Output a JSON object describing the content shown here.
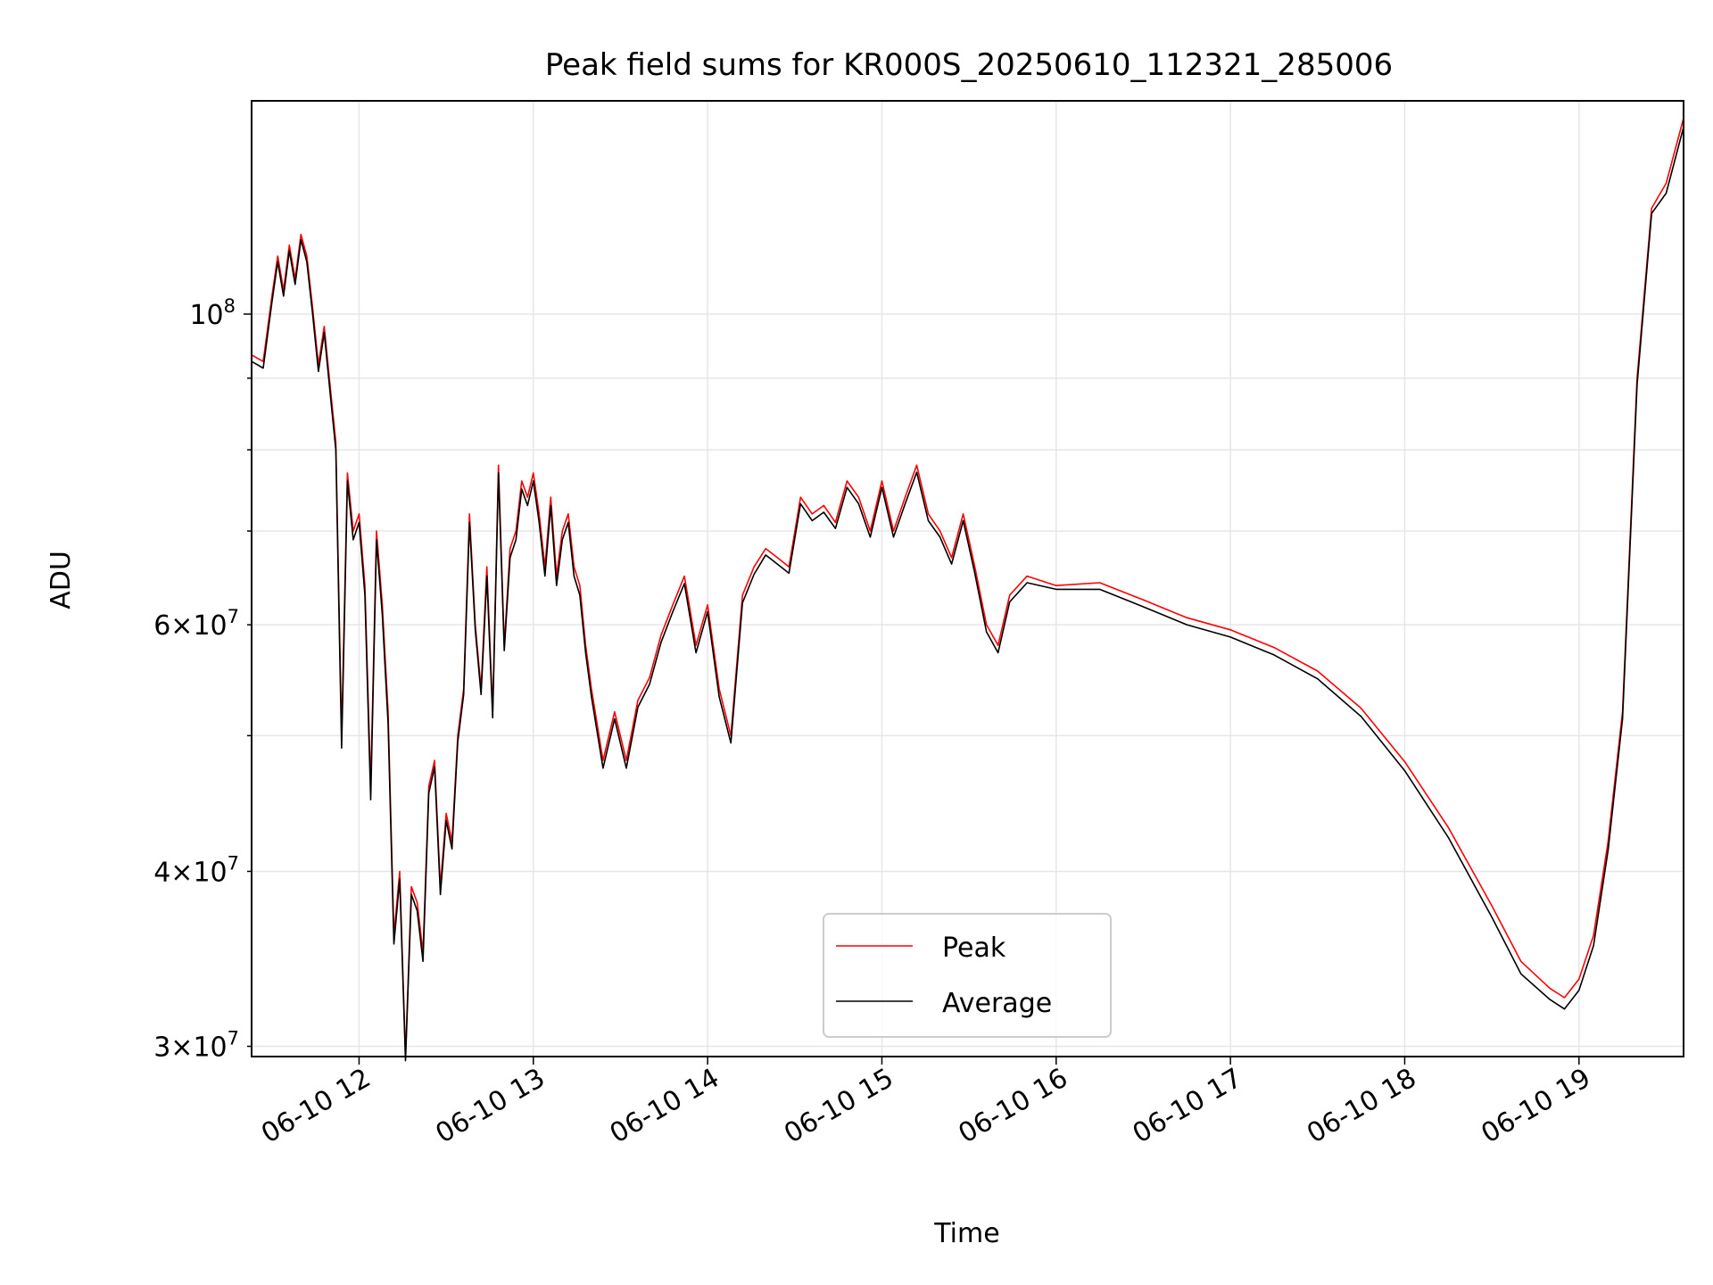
{
  "chart_data": {
    "type": "line",
    "title": "Peak field sums for KR000S_20250610_112321_285006",
    "xlabel": "Time",
    "ylabel": "ADU",
    "yscale": "log",
    "x_axis_type": "datetime",
    "xlim": [
      "2025-06-10 11:23",
      "2025-06-10 19:36"
    ],
    "ylim": [
      29500000,
      142000000
    ],
    "x_ticks": [
      "06-10 12",
      "06-10 13",
      "06-10 14",
      "06-10 15",
      "06-10 16",
      "06-10 17",
      "06-10 18",
      "06-10 19"
    ],
    "y_major_ticks": [
      {
        "value": 100000000,
        "base": "10",
        "exp": "8"
      }
    ],
    "y_minor_ticks": [
      {
        "value": 30000000,
        "mant": "3",
        "exp": "7"
      },
      {
        "value": 40000000,
        "mant": "4",
        "exp": "7"
      },
      {
        "value": 50000000,
        "mant": "",
        "exp": ""
      },
      {
        "value": 60000000,
        "mant": "6",
        "exp": "7"
      },
      {
        "value": 70000000,
        "mant": "",
        "exp": ""
      },
      {
        "value": 80000000,
        "mant": "",
        "exp": ""
      },
      {
        "value": 90000000,
        "mant": "",
        "exp": ""
      }
    ],
    "grid": true,
    "legend_position": "lower center",
    "x": [
      "2025-06-10 11:23",
      "2025-06-10 11:27",
      "2025-06-10 11:30",
      "2025-06-10 11:32",
      "2025-06-10 11:34",
      "2025-06-10 11:36",
      "2025-06-10 11:38",
      "2025-06-10 11:40",
      "2025-06-10 11:42",
      "2025-06-10 11:44",
      "2025-06-10 11:46",
      "2025-06-10 11:48",
      "2025-06-10 11:50",
      "2025-06-10 11:52",
      "2025-06-10 11:54",
      "2025-06-10 11:56",
      "2025-06-10 11:58",
      "2025-06-10 12:00",
      "2025-06-10 12:02",
      "2025-06-10 12:04",
      "2025-06-10 12:06",
      "2025-06-10 12:08",
      "2025-06-10 12:10",
      "2025-06-10 12:12",
      "2025-06-10 12:14",
      "2025-06-10 12:16",
      "2025-06-10 12:18",
      "2025-06-10 12:20",
      "2025-06-10 12:22",
      "2025-06-10 12:24",
      "2025-06-10 12:26",
      "2025-06-10 12:28",
      "2025-06-10 12:30",
      "2025-06-10 12:32",
      "2025-06-10 12:34",
      "2025-06-10 12:36",
      "2025-06-10 12:38",
      "2025-06-10 12:40",
      "2025-06-10 12:42",
      "2025-06-10 12:44",
      "2025-06-10 12:46",
      "2025-06-10 12:48",
      "2025-06-10 12:50",
      "2025-06-10 12:52",
      "2025-06-10 12:54",
      "2025-06-10 12:56",
      "2025-06-10 12:58",
      "2025-06-10 13:00",
      "2025-06-10 13:02",
      "2025-06-10 13:04",
      "2025-06-10 13:06",
      "2025-06-10 13:08",
      "2025-06-10 13:10",
      "2025-06-10 13:12",
      "2025-06-10 13:14",
      "2025-06-10 13:16",
      "2025-06-10 13:18",
      "2025-06-10 13:20",
      "2025-06-10 13:24",
      "2025-06-10 13:28",
      "2025-06-10 13:32",
      "2025-06-10 13:36",
      "2025-06-10 13:40",
      "2025-06-10 13:44",
      "2025-06-10 13:48",
      "2025-06-10 13:52",
      "2025-06-10 13:56",
      "2025-06-10 14:00",
      "2025-06-10 14:04",
      "2025-06-10 14:08",
      "2025-06-10 14:12",
      "2025-06-10 14:16",
      "2025-06-10 14:20",
      "2025-06-10 14:24",
      "2025-06-10 14:28",
      "2025-06-10 14:32",
      "2025-06-10 14:36",
      "2025-06-10 14:40",
      "2025-06-10 14:44",
      "2025-06-10 14:48",
      "2025-06-10 14:52",
      "2025-06-10 14:56",
      "2025-06-10 15:00",
      "2025-06-10 15:04",
      "2025-06-10 15:08",
      "2025-06-10 15:12",
      "2025-06-10 15:16",
      "2025-06-10 15:20",
      "2025-06-10 15:24",
      "2025-06-10 15:28",
      "2025-06-10 15:32",
      "2025-06-10 15:36",
      "2025-06-10 15:40",
      "2025-06-10 15:44",
      "2025-06-10 15:50",
      "2025-06-10 16:00",
      "2025-06-10 16:15",
      "2025-06-10 16:30",
      "2025-06-10 16:45",
      "2025-06-10 17:00",
      "2025-06-10 17:15",
      "2025-06-10 17:30",
      "2025-06-10 17:45",
      "2025-06-10 18:00",
      "2025-06-10 18:15",
      "2025-06-10 18:30",
      "2025-06-10 18:40",
      "2025-06-10 18:50",
      "2025-06-10 18:55",
      "2025-06-10 19:00",
      "2025-06-10 19:05",
      "2025-06-10 19:10",
      "2025-06-10 19:15",
      "2025-06-10 19:20",
      "2025-06-10 19:25",
      "2025-06-10 19:30",
      "2025-06-10 19:36"
    ],
    "series": [
      {
        "name": "Peak",
        "color": "#ff0000",
        "values": [
          93500000,
          92500000,
          103000000,
          110000000,
          104000000,
          112000000,
          106000000,
          114000000,
          110000000,
          101000000,
          92000000,
          98000000,
          89000000,
          81000000,
          50000000,
          77000000,
          70000000,
          72000000,
          64000000,
          46000000,
          70000000,
          62000000,
          52000000,
          36000000,
          40000000,
          29500000,
          39000000,
          38000000,
          35000000,
          46000000,
          48000000,
          39000000,
          44000000,
          42000000,
          50000000,
          54000000,
          72000000,
          60000000,
          54000000,
          66000000,
          52000000,
          78000000,
          58000000,
          68000000,
          70000000,
          76000000,
          74000000,
          77000000,
          72000000,
          66000000,
          74000000,
          65000000,
          70000000,
          72000000,
          66000000,
          64000000,
          58000000,
          54000000,
          48000000,
          52000000,
          48000000,
          53000000,
          55000000,
          59000000,
          62000000,
          65000000,
          58000000,
          62000000,
          54000000,
          50000000,
          63000000,
          66000000,
          68000000,
          67000000,
          66000000,
          74000000,
          72000000,
          73000000,
          71000000,
          76000000,
          74000000,
          70000000,
          76000000,
          70000000,
          74000000,
          78000000,
          72000000,
          70000000,
          67000000,
          72000000,
          66000000,
          60000000,
          58000000,
          63000000,
          65000000,
          64000000,
          64300000,
          62500000,
          60700000,
          59500000,
          57800000,
          55600000,
          52300000,
          47900000,
          43000000,
          37800000,
          34500000,
          33000000,
          32500000,
          33500000,
          36000000,
          42000000,
          52000000,
          90000000,
          119000000,
          124000000,
          138000000
        ]
      },
      {
        "name": "Average",
        "color": "#000000",
        "values": [
          92500000,
          91500000,
          102000000,
          109000000,
          103000000,
          111000000,
          105000000,
          113000000,
          109000000,
          100000000,
          91000000,
          97000000,
          88000000,
          80000000,
          49000000,
          76000000,
          69000000,
          71000000,
          63000000,
          45000000,
          69000000,
          61000000,
          51000000,
          35500000,
          39500000,
          29300000,
          38500000,
          37500000,
          34500000,
          45500000,
          47500000,
          38500000,
          43500000,
          41500000,
          49500000,
          53500000,
          71000000,
          59500000,
          53500000,
          65000000,
          51500000,
          77000000,
          57500000,
          67000000,
          69000000,
          75000000,
          73000000,
          76000000,
          71000000,
          65000000,
          73000000,
          64000000,
          69000000,
          71000000,
          65000000,
          63000000,
          57300000,
          53300000,
          47400000,
          51400000,
          47400000,
          52400000,
          54400000,
          58300000,
          61300000,
          64200000,
          57300000,
          61300000,
          53300000,
          49400000,
          62200000,
          65200000,
          67300000,
          66300000,
          65300000,
          73200000,
          71200000,
          72200000,
          70300000,
          75200000,
          73200000,
          69300000,
          75200000,
          69300000,
          73200000,
          77100000,
          71200000,
          69300000,
          66300000,
          71200000,
          65300000,
          59300000,
          57300000,
          62300000,
          64300000,
          63600000,
          63600000,
          61800000,
          60000000,
          58800000,
          57100000,
          54900000,
          51600000,
          47200000,
          42300000,
          37100000,
          33800000,
          32400000,
          31900000,
          32900000,
          35400000,
          41400000,
          51400000,
          89000000,
          118000000,
          122000000,
          136000000
        ]
      }
    ]
  }
}
